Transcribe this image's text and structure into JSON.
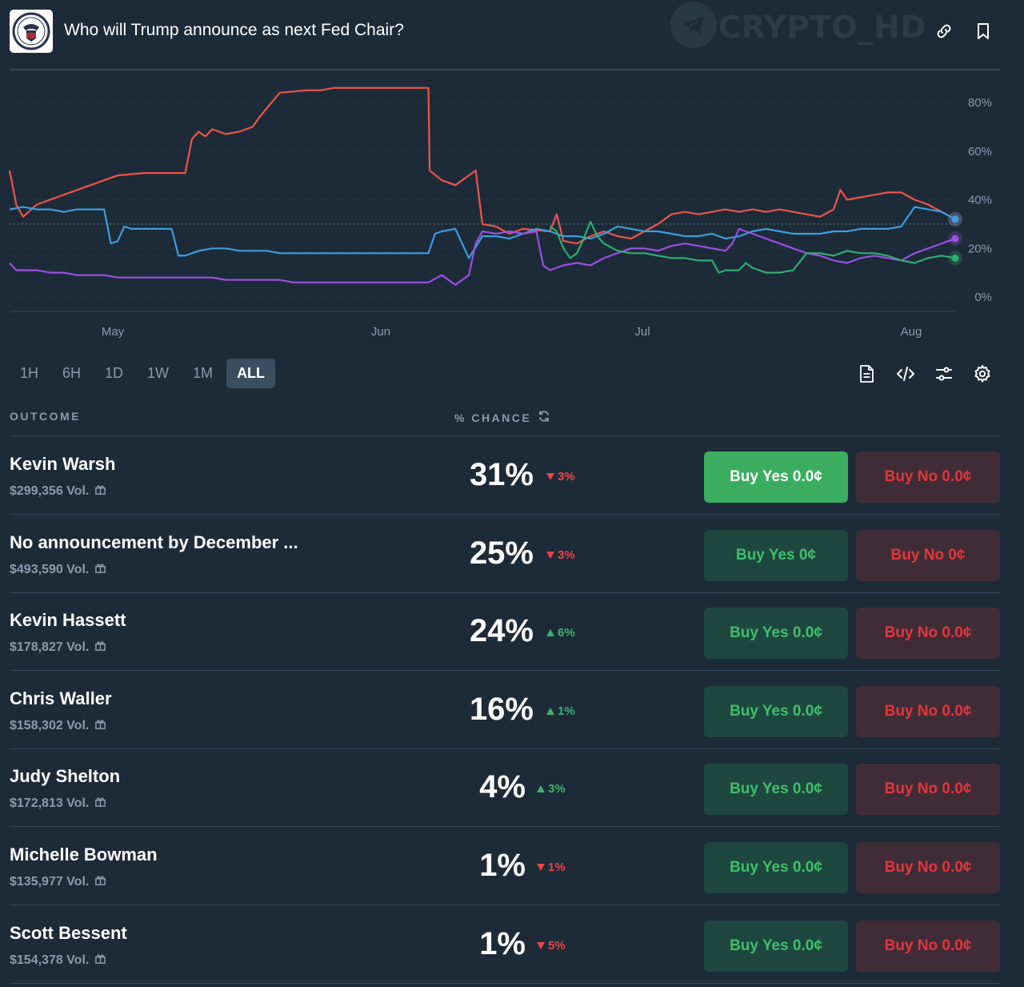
{
  "header": {
    "title": "Who will Trump announce as next Fed Chair?",
    "watermark": "CRYPTO_HD",
    "icons": [
      "link-icon",
      "bookmark-icon"
    ]
  },
  "chart_data": {
    "type": "line",
    "x_labels": [
      "May",
      "Jun",
      "Jul",
      "Aug"
    ],
    "y_ticks": [
      "80%",
      "60%",
      "40%",
      "20%",
      "0%"
    ],
    "ylim": [
      0,
      85
    ],
    "grid": true,
    "legend": "none",
    "series": [
      {
        "color": "#ee5549",
        "values": [
          [
            0,
            52
          ],
          [
            0.5,
            38
          ],
          [
            1,
            33
          ],
          [
            2,
            38
          ],
          [
            3,
            40
          ],
          [
            4,
            42
          ],
          [
            5,
            44
          ],
          [
            6,
            46
          ],
          [
            7,
            48
          ],
          [
            8,
            50
          ],
          [
            10,
            51
          ],
          [
            13,
            51
          ],
          [
            13.5,
            65
          ],
          [
            14,
            68
          ],
          [
            14.5,
            66
          ],
          [
            15,
            69
          ],
          [
            16,
            67
          ],
          [
            17,
            68
          ],
          [
            18,
            70
          ],
          [
            18.5,
            74
          ],
          [
            20,
            84
          ],
          [
            22,
            85
          ],
          [
            23,
            85
          ],
          [
            24,
            86
          ],
          [
            27,
            86
          ],
          [
            30,
            86
          ],
          [
            31,
            86
          ],
          [
            31.1,
            52
          ],
          [
            32,
            48
          ],
          [
            33,
            46
          ],
          [
            34,
            50
          ],
          [
            34.5,
            52
          ],
          [
            35,
            30
          ],
          [
            36,
            29
          ],
          [
            37,
            26
          ],
          [
            38,
            28
          ],
          [
            40,
            27
          ],
          [
            40.5,
            34
          ],
          [
            41,
            23
          ],
          [
            42,
            22
          ],
          [
            43,
            25
          ],
          [
            44,
            27
          ],
          [
            45,
            25
          ],
          [
            46,
            24
          ],
          [
            47,
            27
          ],
          [
            48,
            30
          ],
          [
            49,
            34
          ],
          [
            50,
            35
          ],
          [
            51,
            34
          ],
          [
            52,
            35
          ],
          [
            53,
            36
          ],
          [
            54,
            35
          ],
          [
            55,
            36
          ],
          [
            56,
            35
          ],
          [
            57,
            36
          ],
          [
            58,
            35
          ],
          [
            59,
            34
          ],
          [
            60,
            33
          ],
          [
            61,
            36
          ],
          [
            61.5,
            44
          ],
          [
            62,
            40
          ],
          [
            63,
            41
          ],
          [
            64,
            42
          ],
          [
            65,
            43
          ],
          [
            66,
            43
          ],
          [
            67,
            40
          ],
          [
            68,
            38
          ],
          [
            69,
            35
          ],
          [
            70,
            32
          ]
        ]
      },
      {
        "color": "#3b9ede",
        "values": [
          [
            0,
            36
          ],
          [
            1,
            37
          ],
          [
            2,
            36
          ],
          [
            3,
            36
          ],
          [
            4,
            35
          ],
          [
            5,
            36
          ],
          [
            6,
            36
          ],
          [
            7,
            36
          ],
          [
            7.5,
            22
          ],
          [
            8,
            23
          ],
          [
            8.5,
            29
          ],
          [
            9,
            28
          ],
          [
            10,
            28
          ],
          [
            11,
            28
          ],
          [
            12,
            28
          ],
          [
            12.5,
            17
          ],
          [
            13,
            17
          ],
          [
            14,
            19
          ],
          [
            15,
            20
          ],
          [
            16,
            20
          ],
          [
            17,
            19
          ],
          [
            18,
            19
          ],
          [
            19,
            19
          ],
          [
            20,
            18
          ],
          [
            21,
            18
          ],
          [
            22,
            18
          ],
          [
            23,
            18
          ],
          [
            24,
            18
          ],
          [
            25,
            18
          ],
          [
            26,
            18
          ],
          [
            27,
            18
          ],
          [
            28,
            18
          ],
          [
            29,
            18
          ],
          [
            30,
            18
          ],
          [
            31,
            18
          ],
          [
            31.5,
            26
          ],
          [
            32,
            27
          ],
          [
            33,
            28
          ],
          [
            34,
            16
          ],
          [
            35,
            25
          ],
          [
            36,
            25
          ],
          [
            37,
            24
          ],
          [
            38,
            26
          ],
          [
            39,
            28
          ],
          [
            40,
            27
          ],
          [
            41,
            25
          ],
          [
            42,
            25
          ],
          [
            43,
            24
          ],
          [
            44,
            26
          ],
          [
            45,
            29
          ],
          [
            46,
            28
          ],
          [
            47,
            27
          ],
          [
            48,
            27
          ],
          [
            49,
            26
          ],
          [
            50,
            25
          ],
          [
            51,
            25
          ],
          [
            52,
            26
          ],
          [
            53,
            24
          ],
          [
            54,
            25
          ],
          [
            55,
            27
          ],
          [
            56,
            28
          ],
          [
            57,
            27
          ],
          [
            58,
            26
          ],
          [
            59,
            26
          ],
          [
            60,
            26
          ],
          [
            61,
            27
          ],
          [
            62,
            27
          ],
          [
            63,
            28
          ],
          [
            64,
            28
          ],
          [
            65,
            28
          ],
          [
            66,
            29
          ],
          [
            67,
            37
          ],
          [
            68,
            36
          ],
          [
            69,
            35
          ],
          [
            70,
            32
          ]
        ]
      },
      {
        "color": "#9a50e0",
        "values": [
          [
            0,
            14
          ],
          [
            0.5,
            11
          ],
          [
            1,
            11
          ],
          [
            2,
            11
          ],
          [
            3,
            10
          ],
          [
            4,
            10
          ],
          [
            5,
            9
          ],
          [
            6,
            9
          ],
          [
            7,
            9
          ],
          [
            8,
            8
          ],
          [
            9,
            8
          ],
          [
            10,
            8
          ],
          [
            11,
            8
          ],
          [
            12,
            8
          ],
          [
            13,
            8
          ],
          [
            14,
            8
          ],
          [
            15,
            8
          ],
          [
            16,
            7
          ],
          [
            17,
            7
          ],
          [
            18,
            7
          ],
          [
            19,
            7
          ],
          [
            20,
            7
          ],
          [
            21,
            6
          ],
          [
            22,
            6
          ],
          [
            23,
            6
          ],
          [
            24,
            6
          ],
          [
            25,
            6
          ],
          [
            26,
            6
          ],
          [
            27,
            6
          ],
          [
            28,
            6
          ],
          [
            29,
            6
          ],
          [
            30,
            6
          ],
          [
            31,
            6
          ],
          [
            32,
            9
          ],
          [
            33,
            5
          ],
          [
            34,
            9
          ],
          [
            34.5,
            22
          ],
          [
            35,
            27
          ],
          [
            36,
            26
          ],
          [
            37,
            27
          ],
          [
            38,
            26
          ],
          [
            39,
            27
          ],
          [
            39.5,
            13
          ],
          [
            40,
            11
          ],
          [
            41,
            13
          ],
          [
            42,
            14
          ],
          [
            43,
            13
          ],
          [
            44,
            16
          ],
          [
            45,
            18
          ],
          [
            46,
            20
          ],
          [
            47,
            20
          ],
          [
            48,
            19
          ],
          [
            49,
            21
          ],
          [
            50,
            22
          ],
          [
            51,
            21
          ],
          [
            52,
            20
          ],
          [
            53,
            19
          ],
          [
            53.5,
            22
          ],
          [
            54,
            28
          ],
          [
            55,
            26
          ],
          [
            56,
            24
          ],
          [
            57,
            22
          ],
          [
            58,
            20
          ],
          [
            59,
            18
          ],
          [
            60,
            17
          ],
          [
            61,
            15
          ],
          [
            62,
            14
          ],
          [
            63,
            16
          ],
          [
            64,
            17
          ],
          [
            65,
            16
          ],
          [
            66,
            15
          ],
          [
            67,
            18
          ],
          [
            68,
            20
          ],
          [
            69,
            22
          ],
          [
            70,
            24
          ]
        ]
      },
      {
        "color": "#2fae6f",
        "values": [
          [
            40,
            29
          ],
          [
            40.5,
            27
          ],
          [
            41,
            20
          ],
          [
            41.5,
            16
          ],
          [
            42,
            18
          ],
          [
            42.5,
            24
          ],
          [
            43,
            31
          ],
          [
            43.5,
            25
          ],
          [
            44,
            22
          ],
          [
            45,
            19
          ],
          [
            46,
            18
          ],
          [
            47,
            18
          ],
          [
            48,
            17
          ],
          [
            49,
            16
          ],
          [
            50,
            16
          ],
          [
            51,
            15
          ],
          [
            52,
            15
          ],
          [
            52.5,
            10
          ],
          [
            53,
            11
          ],
          [
            54,
            11
          ],
          [
            54.5,
            14
          ],
          [
            55,
            12
          ],
          [
            56,
            10
          ],
          [
            57,
            10
          ],
          [
            58,
            11
          ],
          [
            59,
            18
          ],
          [
            60,
            18
          ],
          [
            61,
            17
          ],
          [
            62,
            19
          ],
          [
            63,
            18
          ],
          [
            64,
            18
          ],
          [
            65,
            17
          ],
          [
            66,
            15
          ],
          [
            67,
            14
          ],
          [
            68,
            16
          ],
          [
            69,
            17
          ],
          [
            70,
            16
          ]
        ]
      }
    ],
    "dotted_reference": 30
  },
  "range": {
    "options": [
      "1H",
      "6H",
      "1D",
      "1W",
      "1M",
      "ALL"
    ],
    "active": "ALL"
  },
  "table": {
    "col_outcome": "OUTCOME",
    "col_chance": "% CHANCE",
    "rows": [
      {
        "name": "Kevin Warsh",
        "vol": "$299,356 Vol.",
        "pct": "31%",
        "delta": "3%",
        "dir": "down",
        "yes": "Buy Yes 0.0¢",
        "no": "Buy No 0.0¢",
        "primary": true
      },
      {
        "name": "No announcement by December ...",
        "vol": "$493,590 Vol.",
        "pct": "25%",
        "delta": "3%",
        "dir": "down",
        "yes": "Buy Yes 0¢",
        "no": "Buy No 0¢",
        "primary": false
      },
      {
        "name": "Kevin Hassett",
        "vol": "$178,827 Vol.",
        "pct": "24%",
        "delta": "6%",
        "dir": "up",
        "yes": "Buy Yes 0.0¢",
        "no": "Buy No 0.0¢",
        "primary": false
      },
      {
        "name": "Chris Waller",
        "vol": "$158,302 Vol.",
        "pct": "16%",
        "delta": "1%",
        "dir": "up",
        "yes": "Buy Yes 0.0¢",
        "no": "Buy No 0.0¢",
        "primary": false
      },
      {
        "name": "Judy Shelton",
        "vol": "$172,813 Vol.",
        "pct": "4%",
        "delta": "3%",
        "dir": "up",
        "yes": "Buy Yes 0.0¢",
        "no": "Buy No 0.0¢",
        "primary": false
      },
      {
        "name": "Michelle Bowman",
        "vol": "$135,977 Vol.",
        "pct": "1%",
        "delta": "1%",
        "dir": "down",
        "yes": "Buy Yes 0.0¢",
        "no": "Buy No 0.0¢",
        "primary": false
      },
      {
        "name": "Scott Bessent",
        "vol": "$154,378 Vol.",
        "pct": "1%",
        "delta": "5%",
        "dir": "down",
        "yes": "Buy Yes 0.0¢",
        "no": "Buy No 0.0¢",
        "primary": false
      }
    ]
  }
}
